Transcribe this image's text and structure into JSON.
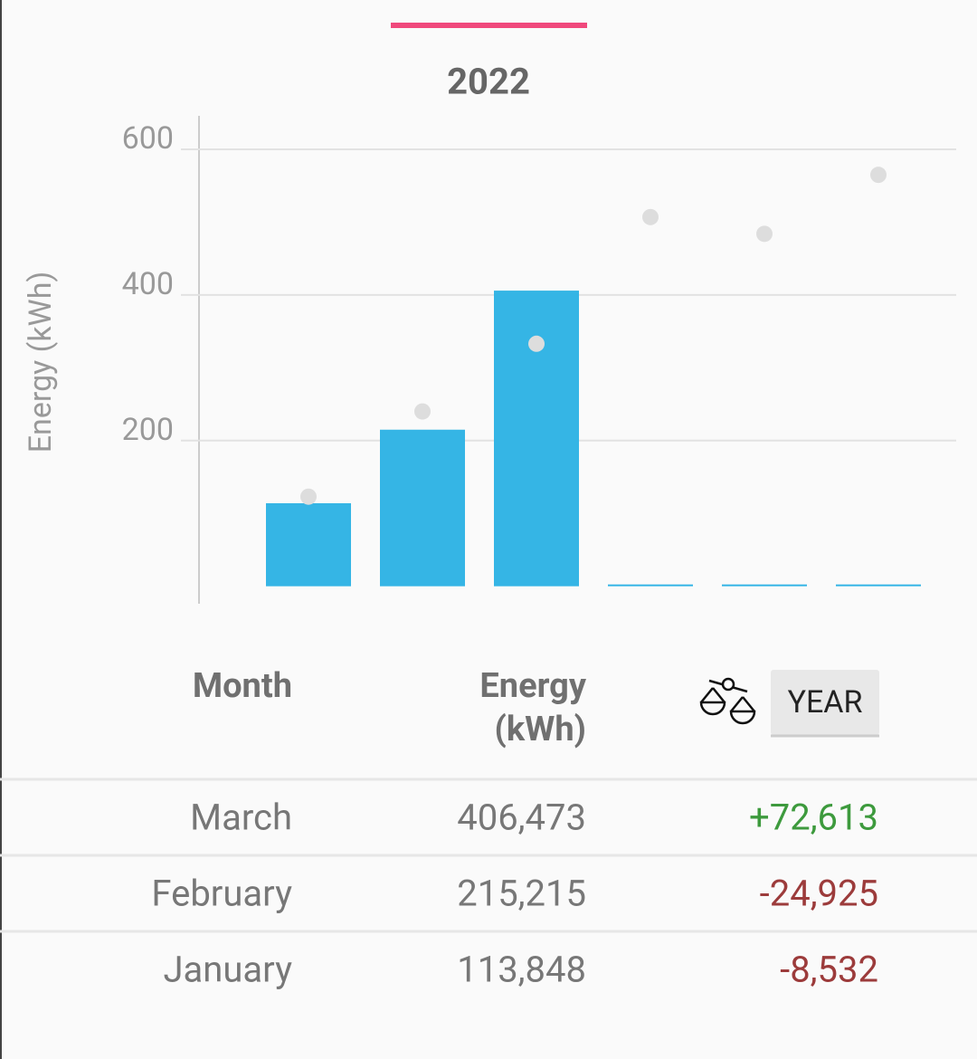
{
  "chart_data": {
    "type": "bar",
    "title": "2022",
    "y_label": "Energy (kWh)",
    "categories": [
      null,
      null,
      null,
      null,
      null,
      null
    ],
    "series": [
      {
        "color": "#35b5e5",
        "values": [
          114,
          215,
          406,
          0,
          0,
          0
        ]
      },
      {
        "type": "scatter",
        "color": "#dddddd",
        "values": [
          123,
          240,
          333,
          507,
          484,
          565
        ]
      }
    ],
    "ylim": [
      -24,
      646
    ],
    "yticks": [
      200,
      400,
      600
    ],
    "grid": true
  },
  "table": {
    "header": {
      "month": "Month",
      "energy": [
        "Energy",
        "(kWh)"
      ],
      "button": "YEAR"
    },
    "rows": [
      [
        "March",
        "406,473",
        "+72,613"
      ],
      [
        "February",
        "215,215",
        "-24,925"
      ],
      [
        "January",
        "113,848",
        "-8,532"
      ]
    ],
    "delta_colors": [
      "#3d9a3d",
      "#9c3b3b",
      "#9c3b3b"
    ]
  }
}
